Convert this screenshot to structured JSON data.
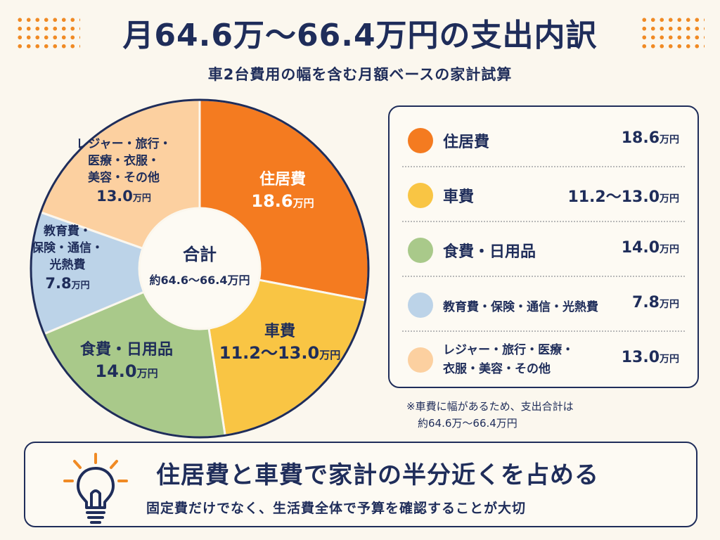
{
  "title": "月64.6万〜66.4万円の支出内訳",
  "subtitle": "車2台費用の幅を含む月額ベースの家計試算",
  "chart_data": {
    "type": "pie",
    "donut": true,
    "center_label": "合計",
    "center_value": "約64.6〜66.4万円",
    "unit": "万円",
    "slices": [
      {
        "label": "住居費",
        "value": 18.6,
        "value_text": "18.6",
        "color": "#f47b20",
        "label_lines": [
          "住居費"
        ]
      },
      {
        "label": "車費",
        "value": 13.0,
        "value_text": "11.2〜13.0",
        "range": [
          11.2,
          13.0
        ],
        "color": "#f9c544",
        "label_lines": [
          "車費"
        ]
      },
      {
        "label": "食費・日用品",
        "value": 14.0,
        "value_text": "14.0",
        "color": "#a9c98a",
        "label_lines": [
          "食費・日用品"
        ]
      },
      {
        "label": "教育費・保険・通信・光熱費",
        "value": 7.8,
        "value_text": "7.8",
        "color": "#bcd3e8",
        "label_lines": [
          "教育費・",
          "保険・通信・",
          "光熱費"
        ]
      },
      {
        "label": "レジャー・旅行・医療・衣服・美容・その他",
        "value": 13.0,
        "value_text": "13.0",
        "color": "#fcd0a0",
        "label_lines": [
          "レジャー・旅行・",
          "医療・衣服・",
          "美容・その他"
        ]
      }
    ]
  },
  "legend": [
    {
      "label": "住居費",
      "value": "18.6",
      "unit": "万円",
      "color": "#f47b20"
    },
    {
      "label": "車費",
      "value": "11.2〜13.0",
      "unit": "万円",
      "color": "#f9c544"
    },
    {
      "label": "食費・日用品",
      "value": "14.0",
      "unit": "万円",
      "color": "#a9c98a"
    },
    {
      "label": "教育費・保険・通信・光熱費",
      "value": "7.8",
      "unit": "万円",
      "color": "#bcd3e8"
    },
    {
      "label_line1": "レジャー・旅行・医療・",
      "label_line2": "衣服・美容・その他",
      "value": "13.0",
      "unit": "万円",
      "color": "#fcd0a0"
    }
  ],
  "note": {
    "line1": "※車費に幅があるため、支出合計は",
    "line2": "約64.6万〜66.4万円"
  },
  "callout": {
    "icon": "lightbulb-icon",
    "headline": "住居費と車費で家計の半分近くを占める",
    "text": "固定費だけでなく、生活費全体で予算を確認することが大切"
  }
}
